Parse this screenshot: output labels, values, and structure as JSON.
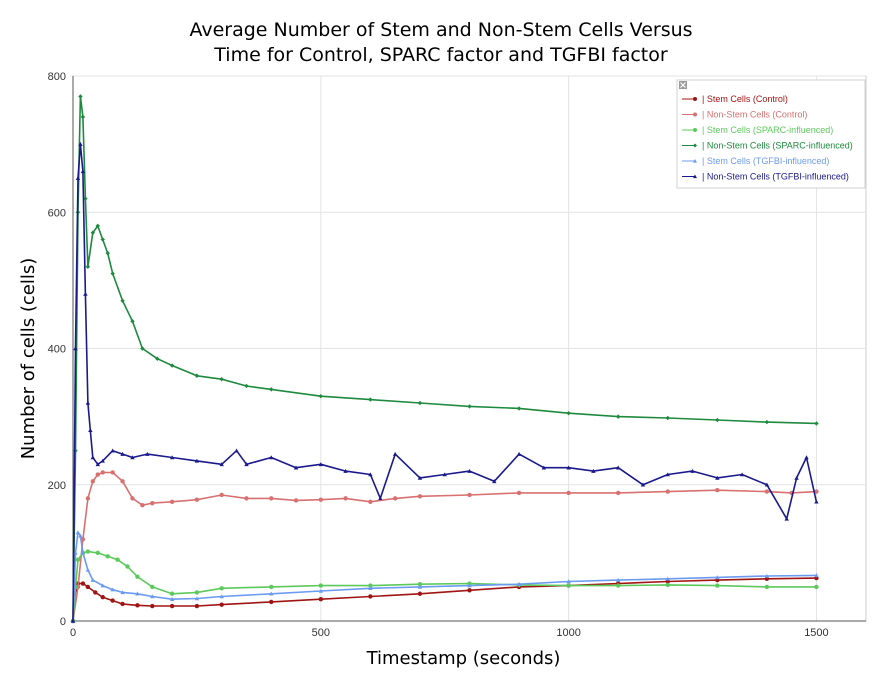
{
  "title_line1": "Average Number of Stem and Non-Stem Cells Versus",
  "title_line2": "Time for Control, SPARC factor and TGFBI factor",
  "chart_data": {
    "type": "line",
    "xlabel": "Timestamp (seconds)",
    "ylabel": "Number of cells (cells)",
    "xlim": [
      0,
      1600
    ],
    "ylim": [
      0,
      800
    ],
    "xticks": [
      0,
      500,
      1000,
      1500
    ],
    "yticks": [
      0,
      200,
      400,
      600,
      800
    ],
    "grid": true,
    "legend_placement": "top-right",
    "legend_close_icon": "close-icon",
    "series": [
      {
        "name": "Stem Cells (Control)",
        "color": "#a01414",
        "marker": "circle",
        "x": [
          0,
          5,
          10,
          20,
          30,
          45,
          60,
          80,
          100,
          130,
          160,
          200,
          250,
          300,
          400,
          500,
          600,
          700,
          800,
          900,
          1000,
          1100,
          1200,
          1300,
          1400,
          1500
        ],
        "y": [
          0,
          45,
          55,
          55,
          50,
          42,
          35,
          30,
          25,
          23,
          22,
          22,
          22,
          24,
          28,
          32,
          36,
          40,
          45,
          50,
          52,
          55,
          58,
          60,
          62,
          63
        ]
      },
      {
        "name": "Non-Stem Cells (Control)",
        "color": "#d97070",
        "marker": "circle",
        "x": [
          0,
          10,
          20,
          30,
          40,
          50,
          60,
          80,
          100,
          120,
          140,
          160,
          200,
          250,
          300,
          350,
          400,
          450,
          500,
          550,
          600,
          650,
          700,
          800,
          900,
          1000,
          1100,
          1200,
          1300,
          1400,
          1450,
          1500
        ],
        "y": [
          0,
          50,
          120,
          180,
          205,
          215,
          218,
          218,
          205,
          180,
          170,
          173,
          175,
          178,
          185,
          180,
          180,
          177,
          178,
          180,
          175,
          180,
          183,
          185,
          188,
          188,
          188,
          190,
          192,
          190,
          188,
          190
        ]
      },
      {
        "name": "Stem Cells (SPARC-influenced)",
        "color": "#5cc95c",
        "marker": "circle",
        "x": [
          0,
          5,
          10,
          20,
          30,
          50,
          70,
          90,
          110,
          130,
          160,
          200,
          250,
          300,
          400,
          500,
          600,
          700,
          800,
          900,
          1000,
          1100,
          1200,
          1300,
          1400,
          1500
        ],
        "y": [
          0,
          50,
          90,
          100,
          102,
          100,
          95,
          90,
          80,
          65,
          50,
          40,
          42,
          48,
          50,
          52,
          52,
          54,
          55,
          53,
          52,
          52,
          53,
          52,
          50,
          50
        ]
      },
      {
        "name": "Non-Stem Cells (SPARC-influenced)",
        "color": "#1e8a3e",
        "marker": "diamond",
        "x": [
          0,
          5,
          10,
          15,
          20,
          25,
          30,
          40,
          50,
          60,
          70,
          80,
          100,
          120,
          140,
          170,
          200,
          250,
          300,
          350,
          400,
          500,
          600,
          700,
          800,
          900,
          1000,
          1100,
          1200,
          1300,
          1400,
          1500
        ],
        "y": [
          0,
          250,
          600,
          770,
          740,
          620,
          520,
          570,
          580,
          560,
          540,
          510,
          470,
          440,
          400,
          385,
          375,
          360,
          355,
          345,
          340,
          330,
          325,
          320,
          315,
          312,
          305,
          300,
          298,
          295,
          292,
          290
        ]
      },
      {
        "name": "Stem Cells (TGFBI-influenced)",
        "color": "#6b9bf0",
        "marker": "triangle",
        "x": [
          0,
          5,
          10,
          15,
          20,
          30,
          40,
          60,
          80,
          100,
          130,
          160,
          200,
          250,
          300,
          400,
          500,
          600,
          700,
          800,
          900,
          1000,
          1100,
          1200,
          1300,
          1400,
          1500
        ],
        "y": [
          0,
          100,
          130,
          125,
          100,
          75,
          60,
          52,
          46,
          42,
          40,
          36,
          32,
          33,
          36,
          40,
          44,
          48,
          50,
          52,
          54,
          58,
          60,
          62,
          64,
          66,
          67
        ]
      },
      {
        "name": "Non-Stem Cells (TGFBI-influenced)",
        "color": "#1a1a8c",
        "marker": "triangle",
        "x": [
          0,
          5,
          10,
          15,
          20,
          25,
          30,
          35,
          40,
          50,
          60,
          80,
          100,
          120,
          150,
          200,
          250,
          300,
          330,
          350,
          400,
          450,
          500,
          550,
          600,
          620,
          650,
          700,
          750,
          800,
          850,
          900,
          950,
          1000,
          1050,
          1100,
          1150,
          1200,
          1250,
          1300,
          1350,
          1400,
          1440,
          1460,
          1480,
          1500
        ],
        "y": [
          0,
          400,
          650,
          700,
          660,
          480,
          320,
          280,
          240,
          230,
          235,
          250,
          245,
          240,
          245,
          240,
          235,
          230,
          250,
          230,
          240,
          225,
          230,
          220,
          215,
          180,
          245,
          210,
          215,
          220,
          205,
          245,
          225,
          225,
          220,
          225,
          200,
          215,
          220,
          210,
          215,
          200,
          150,
          210,
          240,
          175
        ]
      }
    ]
  }
}
